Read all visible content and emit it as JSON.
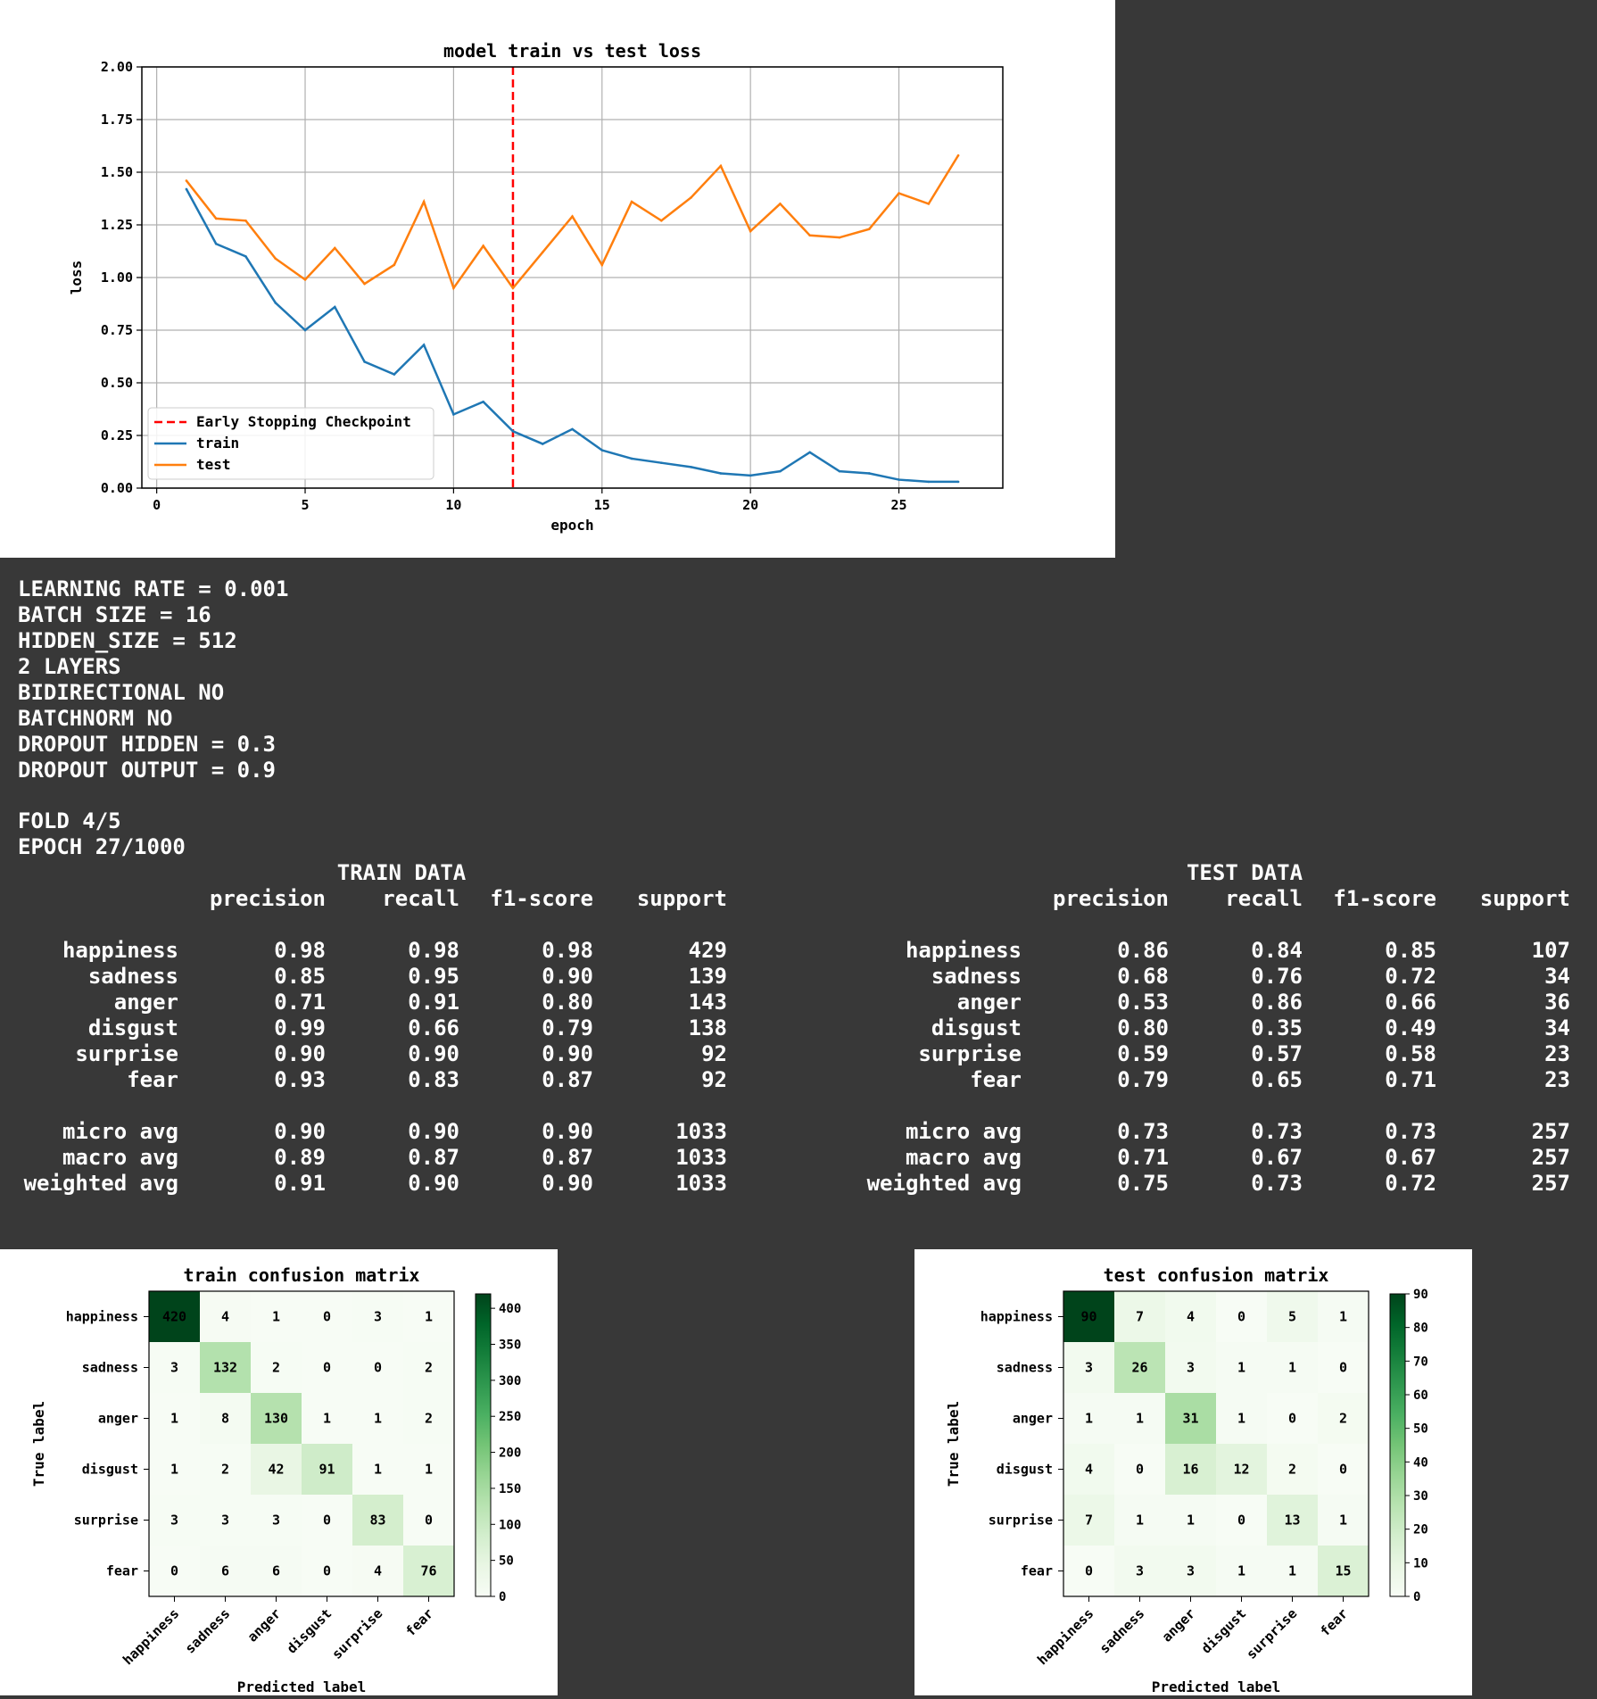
{
  "loss_chart": {
    "type": "line",
    "title": "model train vs test loss",
    "xlabel": "epoch",
    "ylabel": "loss",
    "xlim": [
      -0.5,
      28.5
    ],
    "ylim": [
      0,
      2.0
    ],
    "xticks": [
      0,
      5,
      10,
      15,
      20,
      25
    ],
    "yticks": [
      "0.00",
      "0.25",
      "0.50",
      "0.75",
      "1.00",
      "1.25",
      "1.50",
      "1.75",
      "2.00"
    ],
    "grid": true,
    "legend_position": "lower-left",
    "checkpoint": {
      "name": "Early Stopping Checkpoint",
      "x": 12,
      "color": "#ff0000"
    },
    "series": [
      {
        "name": "train",
        "color": "#1f77b4",
        "x": [
          1,
          2,
          3,
          4,
          5,
          6,
          7,
          8,
          9,
          10,
          11,
          12,
          13,
          14,
          15,
          16,
          17,
          18,
          19,
          20,
          21,
          22,
          23,
          24,
          25,
          26,
          27
        ],
        "values": [
          1.42,
          1.16,
          1.1,
          0.88,
          0.75,
          0.86,
          0.6,
          0.54,
          0.68,
          0.35,
          0.41,
          0.27,
          0.21,
          0.28,
          0.18,
          0.14,
          0.12,
          0.1,
          0.07,
          0.06,
          0.08,
          0.17,
          0.08,
          0.07,
          0.04,
          0.03,
          0.03
        ]
      },
      {
        "name": "test",
        "color": "#ff7f0e",
        "x": [
          1,
          2,
          3,
          4,
          5,
          6,
          7,
          8,
          9,
          10,
          11,
          12,
          13,
          14,
          15,
          16,
          17,
          18,
          19,
          20,
          21,
          22,
          23,
          24,
          25,
          26,
          27
        ],
        "values": [
          1.46,
          1.28,
          1.27,
          1.09,
          0.99,
          1.14,
          0.97,
          1.06,
          1.36,
          0.95,
          1.15,
          0.95,
          1.12,
          1.29,
          1.06,
          1.36,
          1.27,
          1.38,
          1.53,
          1.22,
          1.35,
          1.2,
          1.19,
          1.23,
          1.4,
          1.35,
          1.58
        ]
      }
    ]
  },
  "config": {
    "lines": [
      "LEARNING RATE = 0.001",
      "BATCH SIZE = 16",
      "HIDDEN_SIZE = 512",
      "2 LAYERS",
      "BIDIRECTIONAL NO",
      "BATCHNORM NO",
      "DROPOUT HIDDEN = 0.3",
      "DROPOUT OUTPUT = 0.9"
    ],
    "fold": "FOLD 4/5",
    "epoch": "EPOCH 27/1000"
  },
  "reports": [
    {
      "title": "TRAIN DATA",
      "columns": [
        "precision",
        "recall",
        "f1-score",
        "support"
      ],
      "rows": [
        [
          "happiness",
          "0.98",
          "0.98",
          "0.98",
          "429"
        ],
        [
          "sadness",
          "0.85",
          "0.95",
          "0.90",
          "139"
        ],
        [
          "anger",
          "0.71",
          "0.91",
          "0.80",
          "143"
        ],
        [
          "disgust",
          "0.99",
          "0.66",
          "0.79",
          "138"
        ],
        [
          "surprise",
          "0.90",
          "0.90",
          "0.90",
          "92"
        ],
        [
          "fear",
          "0.93",
          "0.83",
          "0.87",
          "92"
        ]
      ],
      "averages": [
        [
          "micro avg",
          "0.90",
          "0.90",
          "0.90",
          "1033"
        ],
        [
          "macro avg",
          "0.89",
          "0.87",
          "0.87",
          "1033"
        ],
        [
          "weighted avg",
          "0.91",
          "0.90",
          "0.90",
          "1033"
        ]
      ]
    },
    {
      "title": "TEST DATA",
      "columns": [
        "precision",
        "recall",
        "f1-score",
        "support"
      ],
      "rows": [
        [
          "happiness",
          "0.86",
          "0.84",
          "0.85",
          "107"
        ],
        [
          "sadness",
          "0.68",
          "0.76",
          "0.72",
          "34"
        ],
        [
          "anger",
          "0.53",
          "0.86",
          "0.66",
          "36"
        ],
        [
          "disgust",
          "0.80",
          "0.35",
          "0.49",
          "34"
        ],
        [
          "surprise",
          "0.59",
          "0.57",
          "0.58",
          "23"
        ],
        [
          "fear",
          "0.79",
          "0.65",
          "0.71",
          "23"
        ]
      ],
      "averages": [
        [
          "micro avg",
          "0.73",
          "0.73",
          "0.73",
          "257"
        ],
        [
          "macro avg",
          "0.71",
          "0.67",
          "0.67",
          "257"
        ],
        [
          "weighted avg",
          "0.75",
          "0.73",
          "0.72",
          "257"
        ]
      ]
    }
  ],
  "chart_data": [
    {
      "type": "line",
      "ref": "loss_chart"
    },
    {
      "type": "heatmap",
      "title": "train confusion matrix",
      "xlabel": "Predicted label",
      "ylabel": "True label",
      "labels": [
        "happiness",
        "sadness",
        "anger",
        "disgust",
        "surprise",
        "fear"
      ],
      "matrix": [
        [
          420,
          4,
          1,
          0,
          3,
          1
        ],
        [
          3,
          132,
          2,
          0,
          0,
          2
        ],
        [
          1,
          8,
          130,
          1,
          1,
          2
        ],
        [
          1,
          2,
          42,
          91,
          1,
          1
        ],
        [
          3,
          3,
          3,
          0,
          83,
          0
        ],
        [
          0,
          6,
          6,
          0,
          4,
          76
        ]
      ],
      "vmax": 420,
      "colorbar_ticks": [
        0,
        50,
        100,
        150,
        200,
        250,
        300,
        350,
        400
      ],
      "colormap": "Greens"
    },
    {
      "type": "heatmap",
      "title": "test confusion matrix",
      "xlabel": "Predicted label",
      "ylabel": "True label",
      "labels": [
        "happiness",
        "sadness",
        "anger",
        "disgust",
        "surprise",
        "fear"
      ],
      "matrix": [
        [
          90,
          7,
          4,
          0,
          5,
          1
        ],
        [
          3,
          26,
          3,
          1,
          1,
          0
        ],
        [
          1,
          1,
          31,
          1,
          0,
          2
        ],
        [
          4,
          0,
          16,
          12,
          2,
          0
        ],
        [
          7,
          1,
          1,
          0,
          13,
          1
        ],
        [
          0,
          3,
          3,
          1,
          1,
          15
        ]
      ],
      "vmax": 90,
      "colorbar_ticks": [
        0,
        10,
        20,
        30,
        40,
        50,
        60,
        70,
        80,
        90
      ],
      "colormap": "Greens"
    }
  ]
}
